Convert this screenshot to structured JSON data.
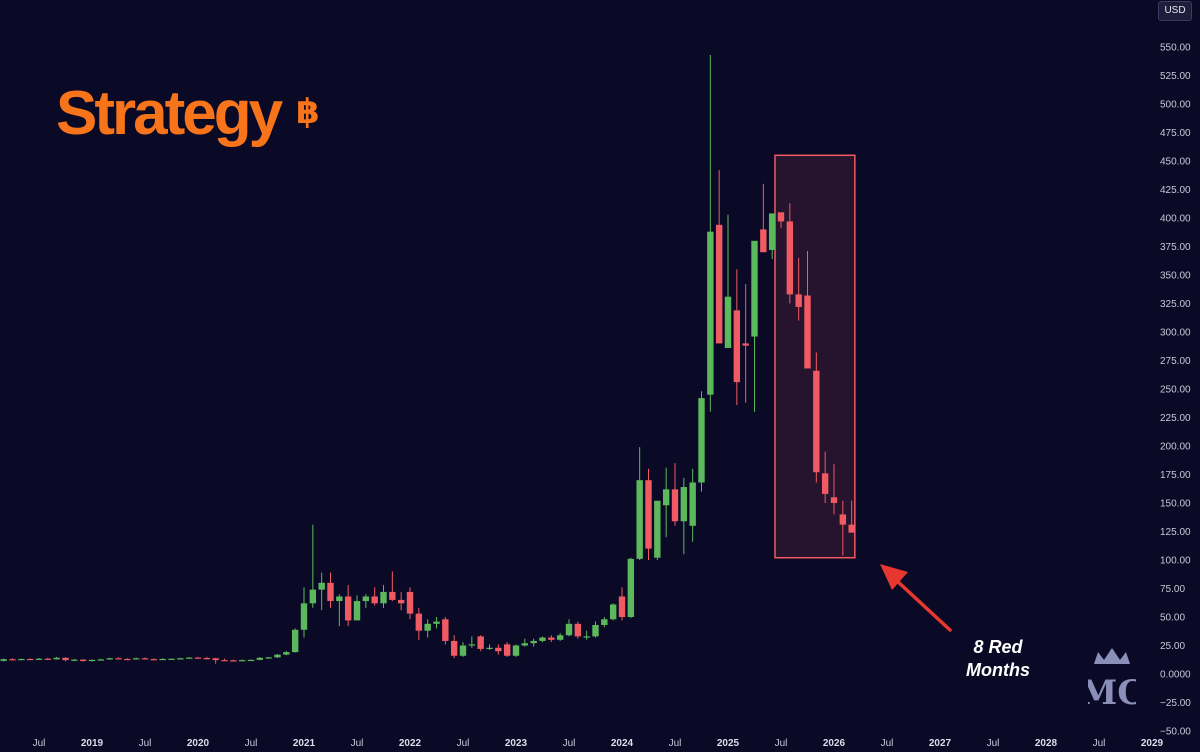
{
  "currency_badge": "USD",
  "logo": {
    "text": "Strategy",
    "symbol": "฿",
    "color": "#f7741a"
  },
  "annotation": {
    "line1": "8 Red",
    "line2": "Months",
    "arrow_color": "#e8372e"
  },
  "watermark": "MC",
  "colors": {
    "up": "#5cb85c",
    "down": "#f05a62",
    "background": "#0b0a26",
    "highlight": "#f05a62"
  },
  "chart_data": {
    "type": "candlestick",
    "interval": "monthly",
    "title": "",
    "xlabel": "",
    "ylabel": "",
    "y_axis_position": "right",
    "ylim": [
      -50,
      550
    ],
    "y_ticks": [
      "550.00",
      "525.00",
      "500.00",
      "475.00",
      "450.00",
      "425.00",
      "400.00",
      "375.00",
      "350.00",
      "325.00",
      "300.00",
      "275.00",
      "250.00",
      "225.00",
      "200.00",
      "175.00",
      "150.00",
      "125.00",
      "100.00",
      "75.00",
      "50.00",
      "25.00",
      "0.0000",
      "−25.00",
      "−50.00"
    ],
    "x_ticks": [
      {
        "label": "Jul",
        "date": "2018-07",
        "year": false
      },
      {
        "label": "2019",
        "date": "2019-01",
        "year": true
      },
      {
        "label": "Jul",
        "date": "2019-07",
        "year": false
      },
      {
        "label": "2020",
        "date": "2020-01",
        "year": true
      },
      {
        "label": "Jul",
        "date": "2020-07",
        "year": false
      },
      {
        "label": "2021",
        "date": "2021-01",
        "year": true
      },
      {
        "label": "Jul",
        "date": "2021-07",
        "year": false
      },
      {
        "label": "2022",
        "date": "2022-01",
        "year": true
      },
      {
        "label": "Jul",
        "date": "2022-07",
        "year": false
      },
      {
        "label": "2023",
        "date": "2023-01",
        "year": true
      },
      {
        "label": "Jul",
        "date": "2023-07",
        "year": false
      },
      {
        "label": "2024",
        "date": "2024-01",
        "year": true
      },
      {
        "label": "Jul",
        "date": "2024-07",
        "year": false
      },
      {
        "label": "2025",
        "date": "2025-01",
        "year": true
      },
      {
        "label": "Jul",
        "date": "2025-07",
        "year": false
      },
      {
        "label": "2026",
        "date": "2026-01",
        "year": true
      },
      {
        "label": "Jul",
        "date": "2026-07",
        "year": false
      },
      {
        "label": "2027",
        "date": "2027-01",
        "year": true
      },
      {
        "label": "Jul",
        "date": "2027-07",
        "year": false
      },
      {
        "label": "2028",
        "date": "2028-01",
        "year": true
      },
      {
        "label": "Jul",
        "date": "2028-07",
        "year": false
      },
      {
        "label": "2029",
        "date": "2029-01",
        "year": true
      }
    ],
    "highlight": {
      "from": "2025-07",
      "to": "2026-02",
      "y_range": [
        102,
        455
      ]
    },
    "candles": [
      {
        "date": "2018-03",
        "open": 11.5,
        "high": 13.5,
        "low": 11.0,
        "close": 13.0
      },
      {
        "date": "2018-04",
        "open": 13.0,
        "high": 13.8,
        "low": 12.2,
        "close": 12.6
      },
      {
        "date": "2018-05",
        "open": 12.6,
        "high": 13.4,
        "low": 12.0,
        "close": 13.2
      },
      {
        "date": "2018-06",
        "open": 13.2,
        "high": 13.6,
        "low": 12.3,
        "close": 12.8
      },
      {
        "date": "2018-07",
        "open": 12.8,
        "high": 14.0,
        "low": 12.5,
        "close": 13.4
      },
      {
        "date": "2018-08",
        "open": 13.4,
        "high": 14.2,
        "low": 12.6,
        "close": 12.9
      },
      {
        "date": "2018-09",
        "open": 12.9,
        "high": 15.0,
        "low": 12.6,
        "close": 14.2
      },
      {
        "date": "2018-10",
        "open": 14.2,
        "high": 14.6,
        "low": 11.2,
        "close": 12.2
      },
      {
        "date": "2018-11",
        "open": 12.2,
        "high": 13.2,
        "low": 11.6,
        "close": 12.6
      },
      {
        "date": "2018-12",
        "open": 12.6,
        "high": 13.0,
        "low": 10.8,
        "close": 11.4
      },
      {
        "date": "2019-01",
        "open": 11.4,
        "high": 12.8,
        "low": 11.0,
        "close": 12.4
      },
      {
        "date": "2019-02",
        "open": 12.4,
        "high": 13.4,
        "low": 12.0,
        "close": 12.8
      },
      {
        "date": "2019-03",
        "open": 12.8,
        "high": 14.2,
        "low": 12.4,
        "close": 13.8
      },
      {
        "date": "2019-04",
        "open": 13.8,
        "high": 14.6,
        "low": 13.0,
        "close": 13.2
      },
      {
        "date": "2019-05",
        "open": 13.2,
        "high": 13.8,
        "low": 12.6,
        "close": 13.0
      },
      {
        "date": "2019-06",
        "open": 13.0,
        "high": 14.4,
        "low": 12.8,
        "close": 13.8
      },
      {
        "date": "2019-07",
        "open": 13.8,
        "high": 14.6,
        "low": 12.8,
        "close": 13.1
      },
      {
        "date": "2019-08",
        "open": 13.1,
        "high": 13.6,
        "low": 12.4,
        "close": 12.8
      },
      {
        "date": "2019-09",
        "open": 12.8,
        "high": 13.8,
        "low": 12.6,
        "close": 13.2
      },
      {
        "date": "2019-10",
        "open": 13.2,
        "high": 13.6,
        "low": 12.6,
        "close": 13.4
      },
      {
        "date": "2019-11",
        "open": 13.4,
        "high": 14.2,
        "low": 13.0,
        "close": 13.8
      },
      {
        "date": "2019-12",
        "open": 13.8,
        "high": 14.8,
        "low": 13.4,
        "close": 14.4
      },
      {
        "date": "2020-01",
        "open": 14.4,
        "high": 15.0,
        "low": 13.6,
        "close": 14.0
      },
      {
        "date": "2020-02",
        "open": 14.0,
        "high": 15.0,
        "low": 12.8,
        "close": 13.8
      },
      {
        "date": "2020-03",
        "open": 13.8,
        "high": 14.2,
        "low": 9.0,
        "close": 12.2
      },
      {
        "date": "2020-04",
        "open": 12.2,
        "high": 13.4,
        "low": 11.6,
        "close": 12.0
      },
      {
        "date": "2020-05",
        "open": 12.0,
        "high": 12.6,
        "low": 11.2,
        "close": 11.8
      },
      {
        "date": "2020-06",
        "open": 11.8,
        "high": 12.8,
        "low": 11.4,
        "close": 12.2
      },
      {
        "date": "2020-07",
        "open": 12.2,
        "high": 12.8,
        "low": 11.8,
        "close": 12.4
      },
      {
        "date": "2020-08",
        "open": 12.4,
        "high": 14.8,
        "low": 12.0,
        "close": 14.2
      },
      {
        "date": "2020-09",
        "open": 14.2,
        "high": 15.0,
        "low": 13.4,
        "close": 14.6
      },
      {
        "date": "2020-10",
        "open": 14.6,
        "high": 17.4,
        "low": 14.0,
        "close": 17.0
      },
      {
        "date": "2020-11",
        "open": 17.0,
        "high": 20.2,
        "low": 16.4,
        "close": 19.2
      },
      {
        "date": "2020-12",
        "open": 19.2,
        "high": 40.0,
        "low": 18.8,
        "close": 38.8
      },
      {
        "date": "2021-01",
        "open": 38.8,
        "high": 76.0,
        "low": 32.0,
        "close": 62.0
      },
      {
        "date": "2021-02",
        "open": 62.0,
        "high": 131.0,
        "low": 58.0,
        "close": 74.0
      },
      {
        "date": "2021-03",
        "open": 74.0,
        "high": 89.0,
        "low": 56.0,
        "close": 80.0
      },
      {
        "date": "2021-04",
        "open": 80.0,
        "high": 89.0,
        "low": 58.0,
        "close": 64.0
      },
      {
        "date": "2021-05",
        "open": 64.0,
        "high": 70.0,
        "low": 42.0,
        "close": 68.0
      },
      {
        "date": "2021-06",
        "open": 68.0,
        "high": 78.0,
        "low": 42.0,
        "close": 47.0
      },
      {
        "date": "2021-07",
        "open": 47.0,
        "high": 69.0,
        "low": 47.0,
        "close": 64.0
      },
      {
        "date": "2021-08",
        "open": 64.0,
        "high": 70.0,
        "low": 58.0,
        "close": 68.0
      },
      {
        "date": "2021-09",
        "open": 68.0,
        "high": 76.0,
        "low": 60.0,
        "close": 62.0
      },
      {
        "date": "2021-10",
        "open": 62.0,
        "high": 78.0,
        "low": 58.0,
        "close": 72.0
      },
      {
        "date": "2021-11",
        "open": 72.0,
        "high": 90.0,
        "low": 64.0,
        "close": 65.0
      },
      {
        "date": "2021-12",
        "open": 65.0,
        "high": 72.0,
        "low": 56.0,
        "close": 62.0
      },
      {
        "date": "2022-01",
        "open": 72.0,
        "high": 76.0,
        "low": 48.0,
        "close": 53.0
      },
      {
        "date": "2022-02",
        "open": 53.0,
        "high": 58.0,
        "low": 30.0,
        "close": 38.0
      },
      {
        "date": "2022-03",
        "open": 38.0,
        "high": 48.0,
        "low": 32.0,
        "close": 44.0
      },
      {
        "date": "2022-04",
        "open": 44.0,
        "high": 50.0,
        "low": 40.0,
        "close": 46.0
      },
      {
        "date": "2022-05",
        "open": 48.0,
        "high": 50.0,
        "low": 26.0,
        "close": 29.0
      },
      {
        "date": "2022-06",
        "open": 29.0,
        "high": 34.0,
        "low": 14.0,
        "close": 16.0
      },
      {
        "date": "2022-07",
        "open": 16.0,
        "high": 28.0,
        "low": 15.0,
        "close": 25.0
      },
      {
        "date": "2022-08",
        "open": 25.0,
        "high": 33.0,
        "low": 23.0,
        "close": 26.0
      },
      {
        "date": "2022-09",
        "open": 33.0,
        "high": 34.0,
        "low": 20.0,
        "close": 22.0
      },
      {
        "date": "2022-10",
        "open": 22.0,
        "high": 26.0,
        "low": 21.0,
        "close": 23.0
      },
      {
        "date": "2022-11",
        "open": 23.0,
        "high": 26.0,
        "low": 17.0,
        "close": 20.0
      },
      {
        "date": "2022-12",
        "open": 26.0,
        "high": 28.0,
        "low": 15.0,
        "close": 16.0
      },
      {
        "date": "2023-01",
        "open": 16.0,
        "high": 26.0,
        "low": 15.0,
        "close": 25.0
      },
      {
        "date": "2023-02",
        "open": 25.0,
        "high": 31.0,
        "low": 24.0,
        "close": 27.0
      },
      {
        "date": "2023-03",
        "open": 27.0,
        "high": 31.0,
        "low": 24.0,
        "close": 29.0
      },
      {
        "date": "2023-04",
        "open": 29.0,
        "high": 33.0,
        "low": 28.0,
        "close": 32.0
      },
      {
        "date": "2023-05",
        "open": 32.0,
        "high": 34.0,
        "low": 28.0,
        "close": 30.0
      },
      {
        "date": "2023-06",
        "open": 30.0,
        "high": 36.0,
        "low": 29.0,
        "close": 34.0
      },
      {
        "date": "2023-07",
        "open": 34.0,
        "high": 48.0,
        "low": 33.0,
        "close": 44.0
      },
      {
        "date": "2023-08",
        "open": 44.0,
        "high": 46.0,
        "low": 31.0,
        "close": 33.0
      },
      {
        "date": "2023-09",
        "open": 33.0,
        "high": 38.0,
        "low": 30.0,
        "close": 33.0
      },
      {
        "date": "2023-10",
        "open": 33.0,
        "high": 46.0,
        "low": 32.0,
        "close": 43.0
      },
      {
        "date": "2023-11",
        "open": 43.0,
        "high": 50.0,
        "low": 41.0,
        "close": 48.0
      },
      {
        "date": "2023-12",
        "open": 48.0,
        "high": 62.0,
        "low": 47.0,
        "close": 61.0
      },
      {
        "date": "2024-01",
        "open": 68.0,
        "high": 76.0,
        "low": 47.0,
        "close": 50.0
      },
      {
        "date": "2024-02",
        "open": 50.0,
        "high": 102.0,
        "low": 49.0,
        "close": 101.0
      },
      {
        "date": "2024-03",
        "open": 101.0,
        "high": 199.0,
        "low": 100.0,
        "close": 170.0
      },
      {
        "date": "2024-04",
        "open": 170.0,
        "high": 180.0,
        "low": 100.0,
        "close": 110.0
      },
      {
        "date": "2024-05",
        "open": 102.0,
        "high": 150.0,
        "low": 100.0,
        "close": 152.0
      },
      {
        "date": "2024-06",
        "open": 148.0,
        "high": 181.0,
        "low": 120.0,
        "close": 162.0
      },
      {
        "date": "2024-07",
        "open": 162.0,
        "high": 185.0,
        "low": 130.0,
        "close": 134.0
      },
      {
        "date": "2024-08",
        "open": 134.0,
        "high": 172.0,
        "low": 105.0,
        "close": 164.0
      },
      {
        "date": "2024-09",
        "open": 130.0,
        "high": 180.0,
        "low": 116.0,
        "close": 168.0
      },
      {
        "date": "2024-10",
        "open": 168.0,
        "high": 248.0,
        "low": 160.0,
        "close": 242.0
      },
      {
        "date": "2024-11",
        "open": 245.0,
        "high": 543.0,
        "low": 230.0,
        "close": 388.0
      },
      {
        "date": "2024-12",
        "open": 394.0,
        "high": 442.0,
        "low": 295.0,
        "close": 290.0
      },
      {
        "date": "2025-01",
        "open": 286.0,
        "high": 403.0,
        "low": 287.0,
        "close": 331.0
      },
      {
        "date": "2025-02",
        "open": 319.0,
        "high": 355.0,
        "low": 236.0,
        "close": 256.0
      },
      {
        "date": "2025-03",
        "open": 290.0,
        "high": 342.0,
        "low": 238.0,
        "close": 288.0
      },
      {
        "date": "2025-04",
        "open": 296.0,
        "high": 378.0,
        "low": 230.0,
        "close": 380.0
      },
      {
        "date": "2025-05",
        "open": 390.0,
        "high": 430.0,
        "low": 370.0,
        "close": 370.0
      },
      {
        "date": "2025-06",
        "open": 372.0,
        "high": 404.0,
        "low": 364.0,
        "close": 404.0
      },
      {
        "date": "2025-07",
        "open": 405.0,
        "high": 403.0,
        "low": 391.0,
        "close": 397.0
      },
      {
        "date": "2025-08",
        "open": 397.0,
        "high": 413.0,
        "low": 325.0,
        "close": 333.0
      },
      {
        "date": "2025-09",
        "open": 333.0,
        "high": 365.0,
        "low": 310.0,
        "close": 322.0
      },
      {
        "date": "2025-10",
        "open": 332.0,
        "high": 371.0,
        "low": 270.0,
        "close": 268.0
      },
      {
        "date": "2025-11",
        "open": 266.0,
        "high": 282.0,
        "low": 168.0,
        "close": 177.0
      },
      {
        "date": "2025-12",
        "open": 176.0,
        "high": 195.0,
        "low": 150.0,
        "close": 158.0
      },
      {
        "date": "2026-01",
        "open": 155.0,
        "high": 184.0,
        "low": 140.0,
        "close": 150.0
      },
      {
        "date": "2026-02",
        "open": 140.0,
        "high": 152.0,
        "low": 104.0,
        "close": 131.0
      },
      {
        "date": "2026-03",
        "open": 131.0,
        "high": 152.0,
        "low": 125.0,
        "close": 124.0
      }
    ]
  }
}
